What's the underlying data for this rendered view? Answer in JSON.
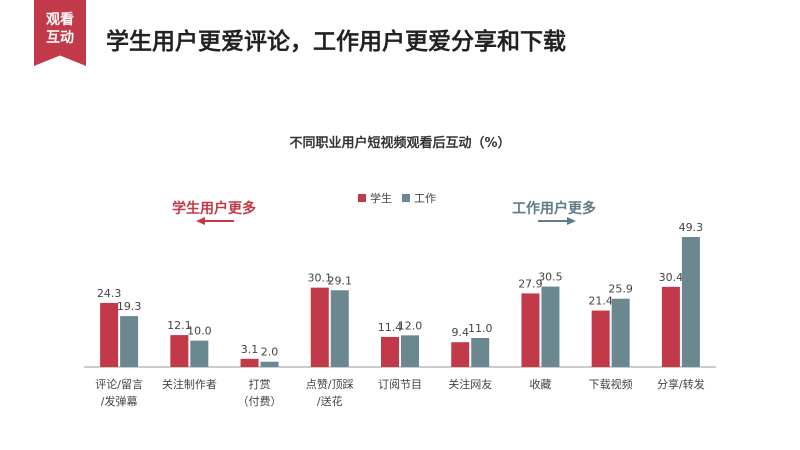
{
  "badge": {
    "line1": "观看",
    "line2": "互动",
    "color": "#c23a4a"
  },
  "headline": "学生用户更爱评论，工作用户更爱分享和下载",
  "notes": {
    "left": {
      "text": "学生用户更多",
      "color": "#c23a4a",
      "arrow": "left"
    },
    "right": {
      "text": "工作用户更多",
      "color": "#5e7b87",
      "arrow": "right"
    }
  },
  "chart_data": {
    "type": "bar",
    "title": "不同职业用户短视频观看后互动（%）",
    "categories": [
      [
        "评论/留言",
        "/发弹幕"
      ],
      [
        "关注制作者"
      ],
      [
        "打赏",
        "（付费）"
      ],
      [
        "点赞/顶踩",
        "/送花"
      ],
      [
        "订阅节目"
      ],
      [
        "关注网友"
      ],
      [
        "收藏"
      ],
      [
        "下载视频"
      ],
      [
        "分享/转发"
      ]
    ],
    "series": [
      {
        "name": "学生",
        "color": "#c23a4a",
        "values": [
          24.3,
          12.1,
          3.1,
          30.1,
          11.4,
          9.4,
          27.9,
          21.4,
          30.4
        ]
      },
      {
        "name": "工作",
        "color": "#6b8891",
        "values": [
          19.3,
          10.0,
          2.0,
          29.1,
          12.0,
          11.0,
          30.5,
          25.9,
          49.3
        ]
      }
    ],
    "value_labels": [
      [
        "24.3",
        "12.1",
        "3.1",
        "30.1",
        "11.4",
        "9.4",
        "27.9",
        "21.4",
        "30.4"
      ],
      [
        "19.3",
        "10.0",
        "2.0",
        "29.1",
        "12.0",
        "11.0",
        "30.5",
        "25.9",
        "49.3"
      ]
    ],
    "ylim": [
      0,
      50
    ],
    "grid": false,
    "legend_position": "top-center"
  }
}
